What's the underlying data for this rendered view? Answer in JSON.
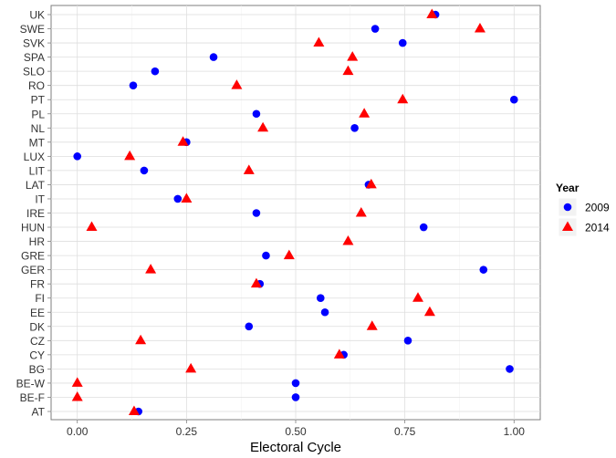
{
  "chart_data": {
    "type": "scatter",
    "title": "",
    "xlabel": "Electoral Cycle",
    "ylabel": "",
    "xlim": [
      -0.06,
      1.06
    ],
    "x_ticks": [
      0,
      0.25,
      0.5,
      0.75,
      1
    ],
    "x_tick_labels": [
      "0.00",
      "0.25",
      "0.50",
      "0.75",
      "1.00"
    ],
    "grid": true,
    "legend_position": "right",
    "legend_title": "Year",
    "categories": [
      "AT",
      "BE-F",
      "BE-W",
      "BG",
      "CY",
      "CZ",
      "DK",
      "EE",
      "FI",
      "FR",
      "GER",
      "GRE",
      "HR",
      "HUN",
      "IRE",
      "IT",
      "LAT",
      "LIT",
      "LUX",
      "MT",
      "NL",
      "PL",
      "PT",
      "RO",
      "SLO",
      "SPA",
      "SVK",
      "SWE",
      "UK"
    ],
    "series": [
      {
        "name": "2009",
        "marker": "circle",
        "color": "#0000ff",
        "values": [
          0.14,
          0.5,
          0.5,
          0.99,
          0.61,
          0.757,
          0.393,
          0.567,
          0.557,
          0.418,
          0.93,
          0.432,
          null,
          0.793,
          0.41,
          0.23,
          0.667,
          0.153,
          0.0,
          0.25,
          0.635,
          0.41,
          1.0,
          0.128,
          0.178,
          0.312,
          0.745,
          0.682,
          0.82
        ]
      },
      {
        "name": "2014",
        "marker": "triangle",
        "color": "#ff0000",
        "values": [
          0.13,
          0.0,
          0.0,
          0.26,
          0.6,
          0.145,
          0.675,
          0.807,
          0.78,
          0.41,
          0.168,
          0.485,
          0.62,
          0.033,
          0.65,
          0.25,
          0.673,
          0.393,
          0.12,
          0.242,
          0.425,
          0.657,
          0.745,
          0.365,
          0.62,
          0.63,
          0.553,
          0.922,
          0.812
        ]
      }
    ]
  }
}
